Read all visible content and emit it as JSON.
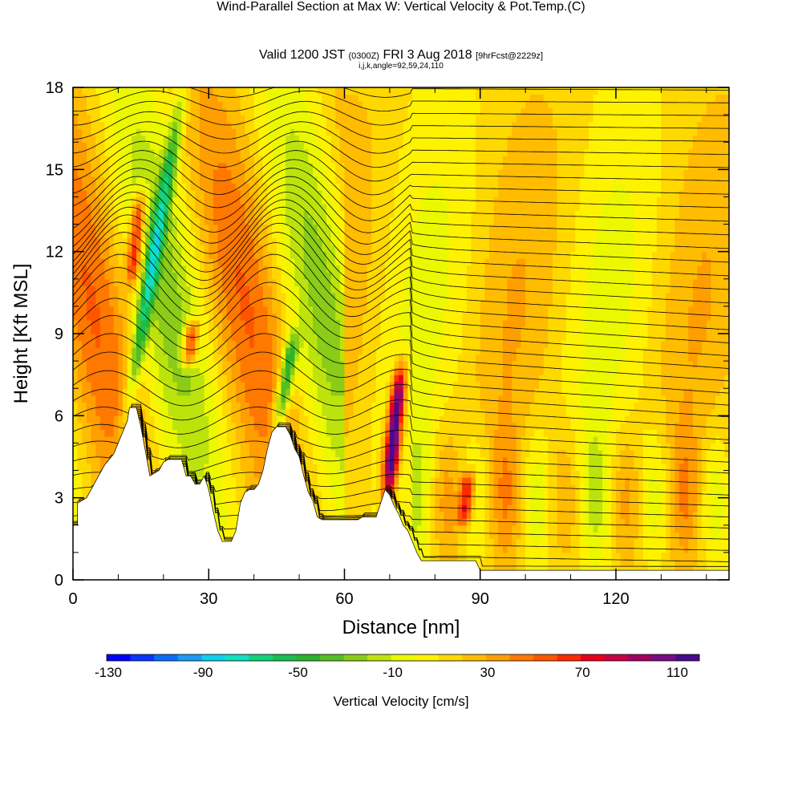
{
  "chart_data": {
    "type": "heatmap",
    "title": "Wind-Parallel Section at Max W: Vertical Velocity & Pot.Temp.",
    "title_unit": "(C)",
    "subtitle_main": "Valid 1200 JST",
    "subtitle_z": "(0300Z)",
    "subtitle_date": "FRI 3 Aug 2018",
    "subtitle_fcst": "[9hrFcst@2229z]",
    "subtitle2": "i,j,k,angle=92,59,24,110",
    "xlabel": "Distance [nm]",
    "ylabel": "Height [Kft MSL]",
    "xlim": [
      0,
      145
    ],
    "ylim": [
      0,
      18
    ],
    "x_ticks": [
      0,
      30,
      60,
      90,
      120
    ],
    "y_ticks": [
      0,
      3,
      6,
      9,
      12,
      15,
      18
    ],
    "colorbar": {
      "title": "Vertical Velocity [cm/s]",
      "labels": [
        "-130",
        "-90",
        "-50",
        "-10",
        "30",
        "70",
        "110"
      ],
      "colors": [
        "#0000ff",
        "#0a36ff",
        "#0a6ef8",
        "#1a9cf5",
        "#0fd0ee",
        "#10e0c0",
        "#12d27a",
        "#18bf50",
        "#2ab52c",
        "#54bf22",
        "#8acc18",
        "#bde30c",
        "#ecf800",
        "#fff200",
        "#ffd800",
        "#ffbc00",
        "#ff9e00",
        "#ff7800",
        "#ff5500",
        "#ff2a00",
        "#e8001a",
        "#c80046",
        "#a10064",
        "#7a0c86",
        "#4a0a8e"
      ]
    },
    "terrain": [
      [
        0,
        2
      ],
      [
        1,
        2
      ],
      [
        1,
        2.8
      ],
      [
        3,
        3
      ],
      [
        4,
        3.3
      ],
      [
        5,
        3.6
      ],
      [
        6,
        3.9
      ],
      [
        7,
        4.2
      ],
      [
        8,
        4.4
      ],
      [
        9,
        4.6
      ],
      [
        10,
        5
      ],
      [
        11,
        5.4
      ],
      [
        12,
        5.8
      ],
      [
        12.5,
        6.3
      ],
      [
        14,
        6.3
      ],
      [
        15,
        5.6
      ],
      [
        16,
        4.7
      ],
      [
        17,
        3.8
      ],
      [
        18,
        3.9
      ],
      [
        19,
        4
      ],
      [
        20,
        4.3
      ],
      [
        21,
        4.4
      ],
      [
        24,
        4.4
      ],
      [
        25,
        3.8
      ],
      [
        26,
        3.8
      ],
      [
        27,
        3.5
      ],
      [
        28,
        3.5
      ],
      [
        29,
        3.8
      ],
      [
        30,
        3.3
      ],
      [
        31,
        2.5
      ],
      [
        32,
        1.8
      ],
      [
        33,
        1.4
      ],
      [
        35,
        1.4
      ],
      [
        36,
        1.8
      ],
      [
        37,
        2.8
      ],
      [
        38,
        3.2
      ],
      [
        39,
        3.3
      ],
      [
        40,
        3.3
      ],
      [
        41,
        3.5
      ],
      [
        42,
        4
      ],
      [
        43,
        4.8
      ],
      [
        44,
        5.4
      ],
      [
        45,
        5.6
      ],
      [
        47,
        5.6
      ],
      [
        48,
        5.3
      ],
      [
        49,
        4.8
      ],
      [
        50,
        4.5
      ],
      [
        51,
        3.8
      ],
      [
        52,
        3.2
      ],
      [
        53,
        2.9
      ],
      [
        54,
        2.3
      ],
      [
        55,
        2.2
      ],
      [
        56,
        2.2
      ],
      [
        57,
        2.2
      ],
      [
        63,
        2.2
      ],
      [
        64,
        2.3
      ],
      [
        67,
        2.3
      ],
      [
        68,
        2.8
      ],
      [
        69,
        3.3
      ],
      [
        70,
        3.1
      ],
      [
        71,
        2.7
      ],
      [
        72,
        2.4
      ],
      [
        73,
        2
      ],
      [
        74,
        1.8
      ],
      [
        75,
        1.4
      ],
      [
        76,
        1
      ],
      [
        77,
        0.7
      ],
      [
        89,
        0.7
      ],
      [
        90,
        0.35
      ],
      [
        145,
        0.35
      ]
    ],
    "isentropes_count": 40,
    "features": [
      {
        "x": 71,
        "h_bot": 3,
        "h_top": 7.8,
        "w": 120
      },
      {
        "x": 14,
        "h_bot": 10.8,
        "h_top": 14.2,
        "w": 70
      },
      {
        "x": 26,
        "h_bot": 7.8,
        "h_top": 9.5,
        "w": 70
      },
      {
        "x": 87,
        "h_bot": 2,
        "h_top": 4,
        "w": 65
      },
      {
        "x": 18,
        "h_bot": 6,
        "h_top": 17.9,
        "w": -60
      },
      {
        "x": 47,
        "h_bot": 5.5,
        "h_top": 9,
        "w": -70
      }
    ]
  }
}
